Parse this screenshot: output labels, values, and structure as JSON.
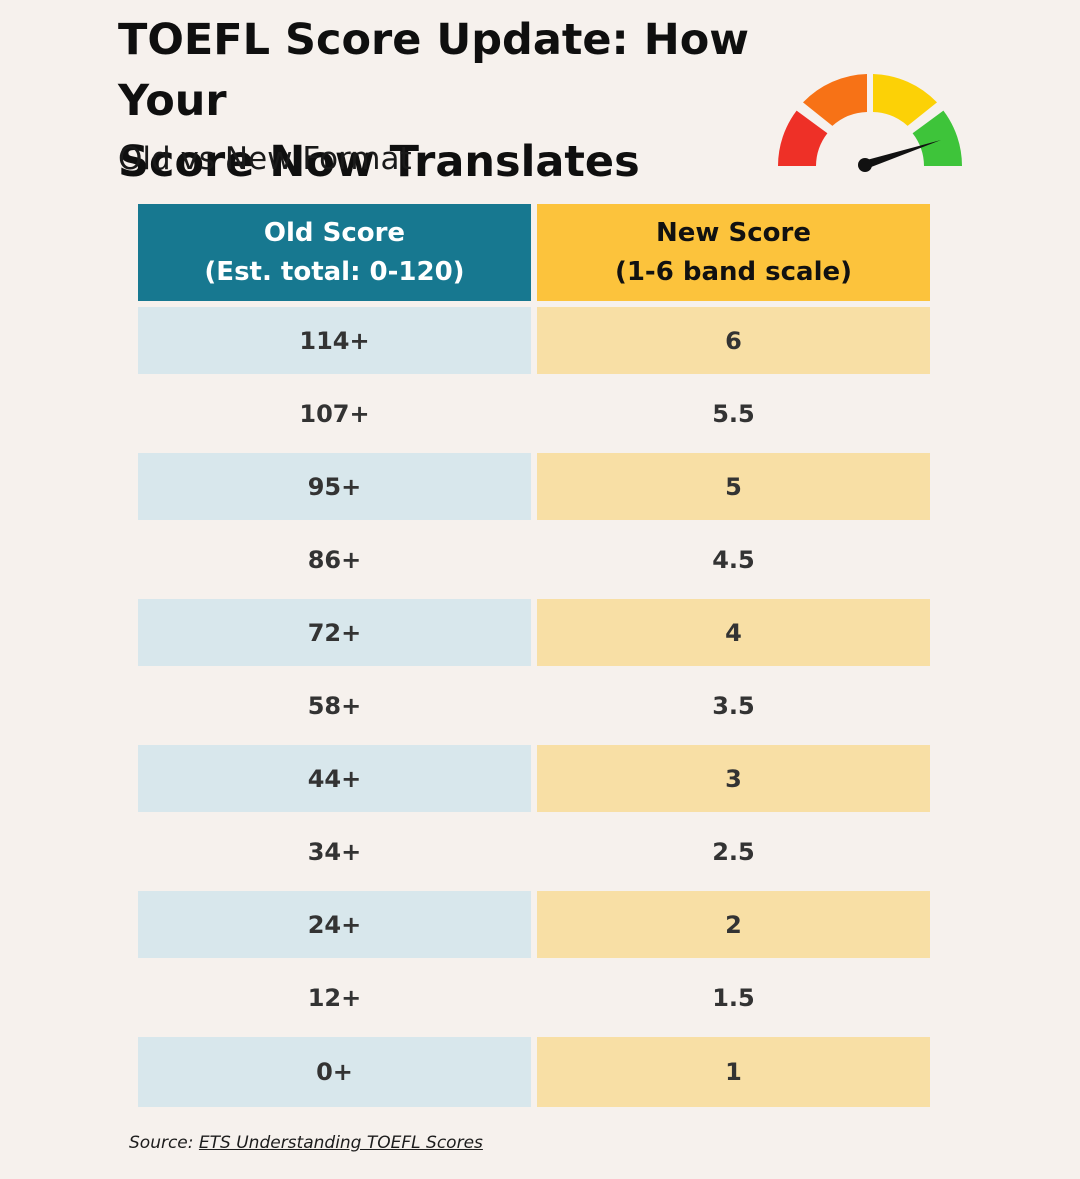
{
  "title": {
    "line1": "TOEFL Score Update: How Your",
    "line2": "Score Now Translates"
  },
  "subtitle": "Old vs New Format",
  "gauge": {
    "icon": "speedometer-gauge-icon",
    "segment_colors": [
      "#ee3027",
      "#f77216",
      "#fcd106",
      "#3ec43a"
    ],
    "needle_color": "#111111"
  },
  "colors": {
    "old_header": "#177890",
    "new_header": "#fcc33c",
    "old_cell": "#d8e7ec",
    "new_cell": "#f8dfa5",
    "background": "#f6f1ed"
  },
  "chart_data": {
    "type": "table",
    "columns": [
      {
        "line1": "Old Score",
        "line2": "(Est. total: 0-120)"
      },
      {
        "line1": "New Score",
        "line2": "(1-6 band scale)"
      }
    ],
    "rows": [
      [
        "114+",
        "6"
      ],
      [
        "107+",
        "5.5"
      ],
      [
        "95+",
        "5"
      ],
      [
        "86+",
        "4.5"
      ],
      [
        "72+",
        "4"
      ],
      [
        "58+",
        "3.5"
      ],
      [
        "44+",
        "3"
      ],
      [
        "34+",
        "2.5"
      ],
      [
        "24+",
        "2"
      ],
      [
        "12+",
        "1.5"
      ],
      [
        "0+",
        "1"
      ]
    ]
  },
  "source": {
    "prefix": "Source: ",
    "link_text": "ETS Understanding TOEFL Scores"
  }
}
